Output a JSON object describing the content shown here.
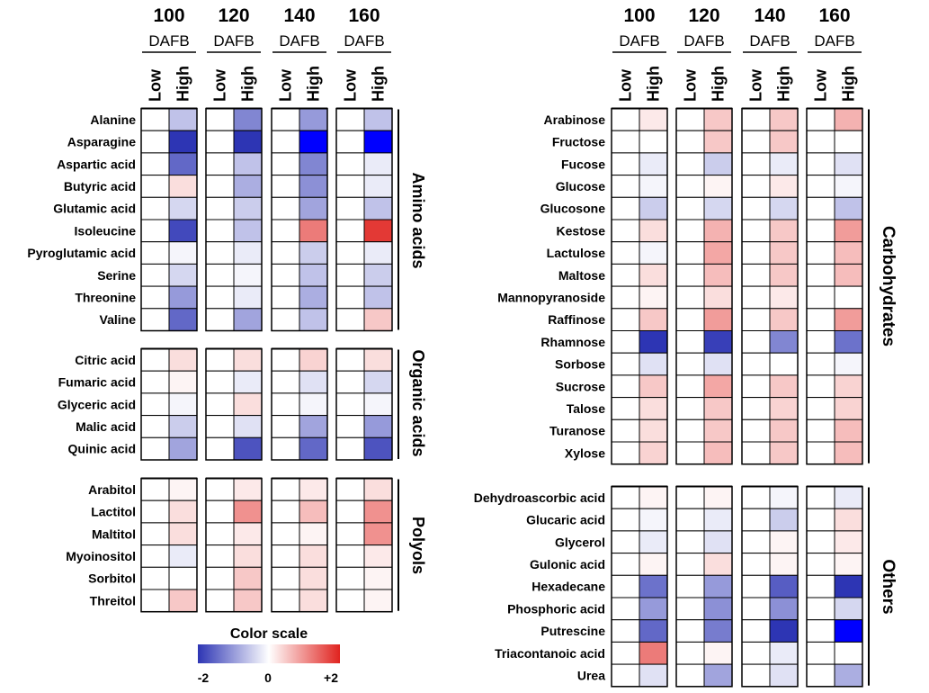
{
  "chart_data": {
    "type": "heatmap",
    "value_range": [
      -2,
      2
    ],
    "colors": {
      "low": "#2d35b4",
      "mid": "#ffffff",
      "high": "#e0231f",
      "saturated_low": "#0000ff"
    },
    "column_groups": [
      {
        "time": "100",
        "unit": "DAFB"
      },
      {
        "time": "120",
        "unit": "DAFB"
      },
      {
        "time": "140",
        "unit": "DAFB"
      },
      {
        "time": "160",
        "unit": "DAFB"
      }
    ],
    "column_labels": [
      "Low",
      "High"
    ],
    "legend": {
      "title": "Color scale",
      "ticks": [
        "-2",
        "0",
        "+2"
      ]
    },
    "panels": [
      {
        "name": "Amino acids",
        "rows": [
          "Alanine",
          "Asparagine",
          "Aspartic acid",
          "Butyric acid",
          "Glutamic acid",
          "Isoleucine",
          "Pyroglutamic acid",
          "Serine",
          "Threonine",
          "Valine"
        ],
        "high_values": [
          [
            -0.6,
            -1.2,
            -1.0,
            -0.6
          ],
          [
            -2.0,
            -2.0,
            -2.5,
            -2.5
          ],
          [
            -1.5,
            -0.6,
            -1.2,
            -0.2
          ],
          [
            0.3,
            -0.8,
            -1.1,
            -0.2
          ],
          [
            -0.4,
            -0.5,
            -0.9,
            -0.6
          ],
          [
            -1.8,
            -0.6,
            1.2,
            1.8
          ],
          [
            -0.1,
            -0.2,
            -0.5,
            -0.2
          ],
          [
            -0.4,
            -0.1,
            -0.6,
            -0.5
          ],
          [
            -1.0,
            -0.2,
            -0.8,
            -0.6
          ],
          [
            -1.5,
            -0.9,
            -0.6,
            0.5
          ]
        ]
      },
      {
        "name": "Organic acids",
        "rows": [
          "Citric acid",
          "Fumaric acid",
          "Glyceric acid",
          "Malic acid",
          "Quinic acid"
        ],
        "high_values": [
          [
            0.3,
            0.3,
            0.4,
            0.3
          ],
          [
            0.1,
            -0.2,
            -0.3,
            -0.4
          ],
          [
            -0.1,
            0.3,
            -0.1,
            -0.1
          ],
          [
            -0.5,
            -0.3,
            -0.9,
            -1.0
          ],
          [
            -0.9,
            -1.7,
            -1.5,
            -1.7
          ]
        ]
      },
      {
        "name": "Polyols",
        "rows": [
          "Arabitol",
          "Lactitol",
          "Maltitol",
          "Myoinositol",
          "Sorbitol",
          "Threitol"
        ],
        "high_values": [
          [
            0.1,
            0.2,
            0.2,
            0.3
          ],
          [
            0.3,
            1.0,
            0.6,
            1.0
          ],
          [
            0.3,
            0.2,
            0.1,
            1.0
          ],
          [
            -0.2,
            0.3,
            0.3,
            0.2
          ],
          [
            0.0,
            0.5,
            0.3,
            0.1
          ],
          [
            0.5,
            0.5,
            0.3,
            0.1
          ]
        ]
      },
      {
        "name": "Carbohydrates",
        "rows": [
          "Arabinose",
          "Fructose",
          "Fucose",
          "Glucose",
          "Glucosone",
          "Kestose",
          "Lactulose",
          "Maltose",
          "Mannopyranoside",
          "Raffinose",
          "Rhamnose",
          "Sorbose",
          "Sucrose",
          "Talose",
          "Turanose",
          "Xylose"
        ],
        "high_values": [
          [
            0.2,
            0.5,
            0.5,
            0.7
          ],
          [
            0.0,
            0.5,
            0.5,
            0.0
          ],
          [
            -0.2,
            -0.5,
            -0.2,
            -0.3
          ],
          [
            -0.1,
            0.1,
            0.2,
            -0.1
          ],
          [
            -0.5,
            -0.4,
            -0.4,
            -0.6
          ],
          [
            0.3,
            0.7,
            0.5,
            0.9
          ],
          [
            -0.1,
            0.8,
            0.5,
            0.6
          ],
          [
            0.3,
            0.6,
            0.5,
            0.6
          ],
          [
            0.1,
            0.3,
            0.2,
            0.0
          ],
          [
            0.5,
            0.9,
            0.5,
            0.9
          ],
          [
            -2.0,
            -1.9,
            -1.2,
            -1.4
          ],
          [
            -0.3,
            -0.3,
            0.0,
            -0.1
          ],
          [
            0.5,
            0.8,
            0.5,
            0.4
          ],
          [
            0.3,
            0.5,
            0.4,
            0.4
          ],
          [
            0.3,
            0.5,
            0.5,
            0.6
          ],
          [
            0.4,
            0.6,
            0.5,
            0.6
          ]
        ]
      },
      {
        "name": "Others",
        "rows": [
          "Dehydroascorbic acid",
          "Glucaric acid",
          "Glycerol",
          "Gulonic acid",
          "Hexadecane",
          "Phosphoric acid",
          "Putrescine",
          "Triacontanoic acid",
          "Urea"
        ],
        "high_values": [
          [
            0.1,
            0.1,
            -0.1,
            -0.2
          ],
          [
            -0.1,
            -0.2,
            -0.5,
            0.3
          ],
          [
            -0.2,
            -0.3,
            0.1,
            0.2
          ],
          [
            0.1,
            0.3,
            0.1,
            0.1
          ],
          [
            -1.4,
            -1.0,
            -1.6,
            -2.0
          ],
          [
            -1.0,
            -1.1,
            -1.1,
            -0.4
          ],
          [
            -1.5,
            -1.3,
            -2.0,
            -2.5
          ],
          [
            1.2,
            0.1,
            -0.2,
            0.0
          ],
          [
            -0.3,
            -0.9,
            -0.3,
            -0.8
          ]
        ]
      }
    ]
  }
}
